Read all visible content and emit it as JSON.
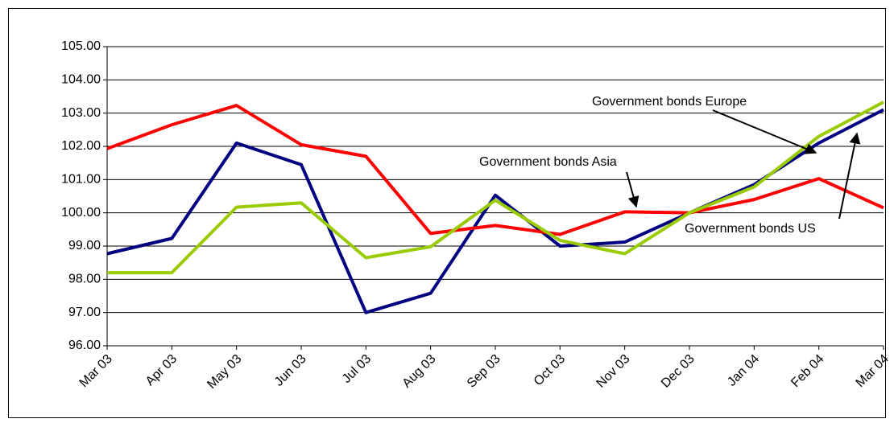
{
  "chart_data": {
    "type": "line",
    "categories": [
      "Mar 03",
      "Apr 03",
      "May 03",
      "Jun 03",
      "Jul 03",
      "Aug 03",
      "Sep 03",
      "Oct 03",
      "Nov 03",
      "Dec 03",
      "Jan 04",
      "Feb 04",
      "Mar 04"
    ],
    "series": [
      {
        "name": "Government bonds US",
        "color": "#000080",
        "values": [
          98.77,
          99.23,
          102.1,
          101.45,
          97.0,
          97.58,
          100.53,
          99.0,
          99.12,
          100.0,
          100.85,
          102.1,
          103.1
        ]
      },
      {
        "name": "Government bonds Asia",
        "color": "#ff0000",
        "values": [
          101.93,
          102.65,
          103.23,
          102.05,
          101.7,
          99.38,
          99.62,
          99.35,
          100.03,
          100.0,
          100.4,
          101.03,
          100.15
        ]
      },
      {
        "name": "Government bonds Europe",
        "color": "#99cc00",
        "values": [
          98.2,
          98.2,
          100.17,
          100.3,
          98.65,
          98.98,
          100.38,
          99.17,
          98.77,
          100.0,
          100.78,
          102.3,
          103.33
        ]
      }
    ],
    "ylim": [
      96,
      105
    ],
    "yticks": [
      {
        "value": 96,
        "label": "96.00"
      },
      {
        "value": 97,
        "label": "97.00"
      },
      {
        "value": 98,
        "label": "98.00"
      },
      {
        "value": 99,
        "label": "99.00"
      },
      {
        "value": 100,
        "label": "100.00"
      },
      {
        "value": 101,
        "label": "101.00"
      },
      {
        "value": 102,
        "label": "102.00"
      },
      {
        "value": 103,
        "label": "103.00"
      },
      {
        "value": 104,
        "label": "104.00"
      },
      {
        "value": 105,
        "label": "105.00"
      }
    ],
    "grid": true
  }
}
